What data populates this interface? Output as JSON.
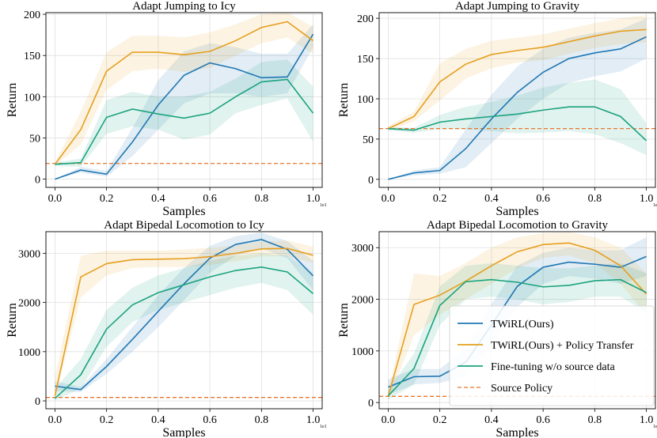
{
  "chart_data": [
    {
      "type": "line",
      "title": "Adapt Jumping to Icy",
      "xlabel": "Samples",
      "ylabel": "Return",
      "x_exponent": "1e1",
      "xlim": [
        -0.035,
        1.035
      ],
      "ylim": [
        -10,
        202
      ],
      "xticks": [
        "0.0",
        "0.2",
        "0.4",
        "0.6",
        "0.8",
        "1.0"
      ],
      "yticks": [
        "0",
        "50",
        "100",
        "150",
        "200"
      ],
      "grid": true,
      "x": [
        0,
        0.1,
        0.2,
        0.3,
        0.4,
        0.5,
        0.6,
        0.7,
        0.8,
        0.9,
        1.0
      ],
      "series": [
        {
          "name": "TWiRL(Ours)",
          "values": [
            0,
            11,
            6,
            45,
            90,
            126,
            141,
            134,
            123,
            124,
            176
          ],
          "lower": [
            0,
            8,
            3,
            28,
            60,
            92,
            104,
            104,
            100,
            104,
            160
          ],
          "upper": [
            0,
            15,
            10,
            62,
            120,
            155,
            165,
            160,
            152,
            152,
            188
          ]
        },
        {
          "name": "TWiRL(Ours) + Policy Transfer",
          "values": [
            18,
            60,
            131,
            154,
            154,
            151,
            155,
            168,
            184,
            191,
            168
          ],
          "lower": [
            16,
            42,
            108,
            131,
            134,
            130,
            135,
            150,
            165,
            172,
            152
          ],
          "upper": [
            20,
            82,
            154,
            174,
            174,
            172,
            178,
            188,
            200,
            202,
            185
          ]
        },
        {
          "name": "Fine-tuning w/o source data",
          "values": [
            18,
            20,
            75,
            85,
            79,
            74,
            80,
            100,
            118,
            121,
            80
          ],
          "lower": [
            16,
            15,
            55,
            64,
            60,
            48,
            54,
            80,
            90,
            98,
            45
          ],
          "upper": [
            20,
            25,
            96,
            106,
            100,
            100,
            106,
            122,
            142,
            145,
            112
          ]
        }
      ],
      "reference_line": {
        "name": "Source Policy",
        "value": 19
      }
    },
    {
      "type": "line",
      "title": "Adapt Jumping to Gravity",
      "xlabel": "Samples",
      "ylabel": "Return",
      "x_exponent": "1e1",
      "xlim": [
        -0.035,
        1.035
      ],
      "ylim": [
        -10,
        207
      ],
      "xticks": [
        "0.0",
        "0.2",
        "0.4",
        "0.6",
        "0.8",
        "1.0"
      ],
      "yticks": [
        "0",
        "50",
        "100",
        "150",
        "200"
      ],
      "grid": true,
      "x": [
        0,
        0.1,
        0.2,
        0.3,
        0.4,
        0.5,
        0.6,
        0.7,
        0.8,
        0.9,
        1.0
      ],
      "series": [
        {
          "name": "TWiRL(Ours)",
          "values": [
            0,
            8,
            11,
            38,
            75,
            108,
            133,
            150,
            157,
            162,
            177
          ],
          "lower": [
            0,
            5,
            7,
            15,
            45,
            75,
            100,
            120,
            128,
            134,
            150
          ],
          "upper": [
            0,
            11,
            15,
            62,
            105,
            140,
            162,
            176,
            182,
            186,
            200
          ]
        },
        {
          "name": "TWiRL(Ours) + Policy Transfer",
          "values": [
            63,
            78,
            121,
            143,
            155,
            160,
            164,
            171,
            178,
            184,
            186
          ],
          "lower": [
            60,
            72,
            98,
            125,
            138,
            145,
            148,
            156,
            163,
            168,
            170
          ],
          "upper": [
            66,
            84,
            144,
            162,
            172,
            176,
            180,
            187,
            194,
            200,
            204
          ]
        },
        {
          "name": "Fine-tuning w/o source data",
          "values": [
            63,
            61,
            71,
            75,
            78,
            81,
            86,
            90,
            90,
            78,
            48
          ],
          "lower": [
            61,
            58,
            62,
            62,
            60,
            57,
            58,
            60,
            56,
            45,
            30
          ],
          "upper": [
            65,
            64,
            80,
            90,
            96,
            104,
            114,
            120,
            124,
            112,
            70
          ]
        }
      ],
      "reference_line": {
        "name": "Source Policy",
        "value": 63
      }
    },
    {
      "type": "line",
      "title": "Adapt Bipedal Locomotion to Icy",
      "xlabel": "Samples",
      "ylabel": "Return",
      "x_exponent": "1e1",
      "xlim": [
        -0.035,
        1.035
      ],
      "ylim": [
        -160,
        3440
      ],
      "xticks": [
        "0.0",
        "0.2",
        "0.4",
        "0.6",
        "0.8",
        "1.0"
      ],
      "yticks": [
        "0",
        "1000",
        "2000",
        "3000"
      ],
      "grid": true,
      "x": [
        0,
        0.1,
        0.2,
        0.3,
        0.4,
        0.5,
        0.6,
        0.7,
        0.8,
        0.9,
        1.0
      ],
      "series": [
        {
          "name": "TWiRL(Ours)",
          "values": [
            300,
            230,
            700,
            1250,
            1820,
            2380,
            2900,
            3180,
            3280,
            3080,
            2540
          ],
          "lower": [
            200,
            180,
            550,
            1000,
            1500,
            2050,
            2600,
            2950,
            3100,
            2900,
            2250
          ],
          "upper": [
            400,
            280,
            850,
            1500,
            2150,
            2700,
            3150,
            3350,
            3420,
            3250,
            2850
          ]
        },
        {
          "name": "TWiRL(Ours) + Policy Transfer",
          "values": [
            100,
            2520,
            2790,
            2870,
            2880,
            2890,
            2930,
            3000,
            3090,
            3100,
            2960
          ],
          "lower": [
            50,
            2100,
            2550,
            2700,
            2720,
            2720,
            2760,
            2840,
            2940,
            2940,
            2800
          ],
          "upper": [
            500,
            2950,
            3050,
            3050,
            3050,
            3080,
            3110,
            3160,
            3240,
            3260,
            3130
          ]
        },
        {
          "name": "Fine-tuning w/o source data",
          "values": [
            50,
            530,
            1460,
            1950,
            2200,
            2360,
            2520,
            2650,
            2720,
            2620,
            2180
          ],
          "lower": [
            10,
            250,
            1100,
            1600,
            1850,
            2000,
            2150,
            2300,
            2400,
            2250,
            1750
          ],
          "upper": [
            250,
            850,
            1850,
            2300,
            2550,
            2700,
            2850,
            2950,
            3000,
            2950,
            2600
          ]
        }
      ],
      "reference_line": {
        "name": "Source Policy",
        "value": 70
      }
    },
    {
      "type": "line",
      "title": "Adapt Bipedal Locomotion to Gravity",
      "xlabel": "Samples",
      "ylabel": "Return",
      "x_exponent": "1e1",
      "xlim": [
        -0.035,
        1.035
      ],
      "ylim": [
        -120,
        3310
      ],
      "xticks": [
        "0.0",
        "0.2",
        "0.4",
        "0.6",
        "0.8",
        "1.0"
      ],
      "yticks": [
        "0",
        "1000",
        "2000",
        "3000"
      ],
      "grid": true,
      "x": [
        0,
        0.1,
        0.2,
        0.3,
        0.4,
        0.5,
        0.6,
        0.7,
        0.8,
        0.9,
        1.0
      ],
      "series": [
        {
          "name": "TWiRL(Ours)",
          "values": [
            300,
            500,
            510,
            780,
            1500,
            2250,
            2620,
            2720,
            2680,
            2620,
            2830
          ],
          "lower": [
            150,
            350,
            380,
            500,
            1100,
            1850,
            2300,
            2450,
            2400,
            2300,
            2450
          ],
          "upper": [
            450,
            650,
            650,
            1050,
            1900,
            2650,
            2900,
            3000,
            2950,
            2950,
            3200
          ]
        },
        {
          "name": "TWiRL(Ours) + Policy Transfer",
          "values": [
            120,
            1900,
            2080,
            2350,
            2650,
            2920,
            3060,
            3090,
            2950,
            2650,
            2100
          ],
          "lower": [
            50,
            1300,
            1700,
            2000,
            2300,
            2600,
            2800,
            2850,
            2700,
            2300,
            1700
          ],
          "upper": [
            200,
            2500,
            2450,
            2700,
            3000,
            3200,
            3280,
            3300,
            3200,
            3000,
            2500
          ]
        },
        {
          "name": "Fine-tuning w/o source data",
          "values": [
            130,
            660,
            1880,
            2340,
            2380,
            2330,
            2240,
            2270,
            2360,
            2380,
            2130
          ],
          "lower": [
            50,
            350,
            1500,
            2000,
            2050,
            2000,
            1900,
            1950,
            2050,
            2050,
            1750
          ],
          "upper": [
            250,
            950,
            2250,
            2650,
            2700,
            2650,
            2600,
            2600,
            2650,
            2700,
            2500
          ]
        }
      ],
      "reference_line": {
        "name": "Source Policy",
        "value": 120
      },
      "legend": "bottom-right"
    }
  ],
  "legend": [
    {
      "name": "TWiRL(Ours)",
      "style": "line"
    },
    {
      "name": "TWiRL(Ours) + Policy Transfer",
      "style": "line"
    },
    {
      "name": "Fine-tuning w/o source data",
      "style": "line"
    },
    {
      "name": "Source Policy",
      "style": "dashed"
    }
  ],
  "colors": {
    "TWiRL(Ours)": "#1f77b4",
    "TWiRL(Ours) + Policy Transfer": "#e69f1f",
    "Fine-tuning w/o source data": "#1aa37e",
    "Source Policy": "#e8762c"
  }
}
